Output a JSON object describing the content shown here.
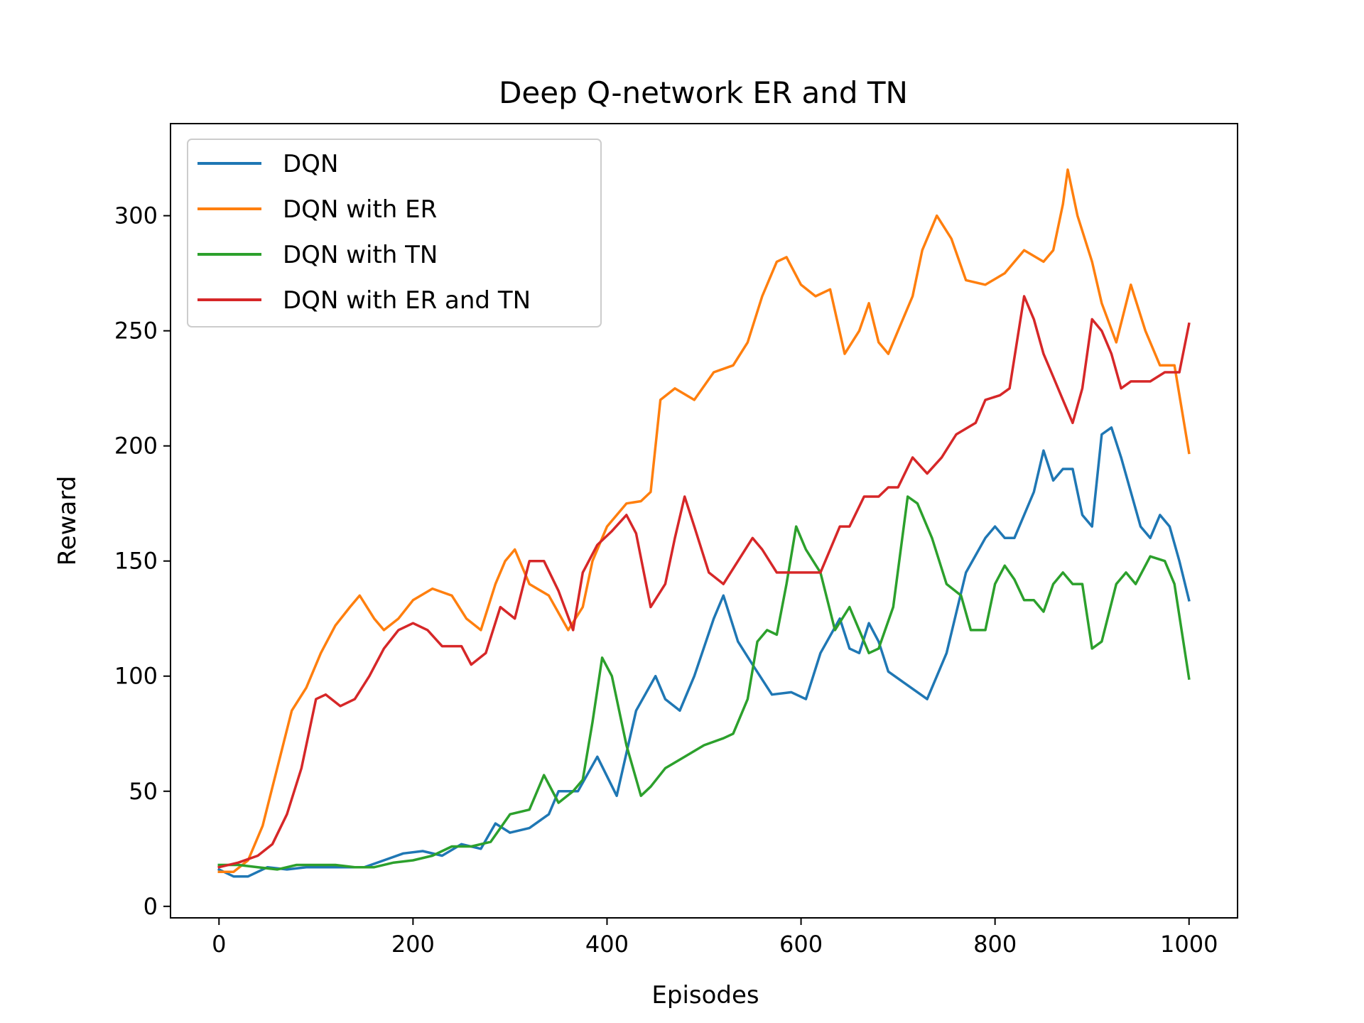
{
  "chart_data": {
    "type": "line",
    "title": "Deep Q-network ER and TN",
    "xlabel": "Episodes",
    "ylabel": "Reward",
    "xlim": [
      -50,
      1050
    ],
    "ylim": [
      -5,
      340
    ],
    "xticks": [
      0,
      200,
      400,
      600,
      800,
      1000
    ],
    "yticks": [
      0,
      50,
      100,
      150,
      200,
      250,
      300
    ],
    "grid": false,
    "legend_position": "top-left",
    "series": [
      {
        "name": "DQN",
        "color": "#1f77b4",
        "points": [
          [
            0,
            16
          ],
          [
            15,
            13
          ],
          [
            30,
            13
          ],
          [
            50,
            17
          ],
          [
            70,
            16
          ],
          [
            90,
            17
          ],
          [
            110,
            17
          ],
          [
            130,
            17
          ],
          [
            150,
            17
          ],
          [
            170,
            20
          ],
          [
            190,
            23
          ],
          [
            210,
            24
          ],
          [
            230,
            22
          ],
          [
            250,
            27
          ],
          [
            270,
            25
          ],
          [
            285,
            36
          ],
          [
            300,
            32
          ],
          [
            320,
            34
          ],
          [
            340,
            40
          ],
          [
            350,
            50
          ],
          [
            370,
            50
          ],
          [
            390,
            65
          ],
          [
            410,
            48
          ],
          [
            430,
            85
          ],
          [
            450,
            100
          ],
          [
            460,
            90
          ],
          [
            475,
            85
          ],
          [
            490,
            100
          ],
          [
            510,
            125
          ],
          [
            520,
            135
          ],
          [
            535,
            115
          ],
          [
            550,
            105
          ],
          [
            570,
            92
          ],
          [
            590,
            93
          ],
          [
            605,
            90
          ],
          [
            620,
            110
          ],
          [
            640,
            125
          ],
          [
            650,
            112
          ],
          [
            660,
            110
          ],
          [
            670,
            123
          ],
          [
            680,
            115
          ],
          [
            690,
            102
          ],
          [
            710,
            96
          ],
          [
            730,
            90
          ],
          [
            750,
            110
          ],
          [
            770,
            145
          ],
          [
            790,
            160
          ],
          [
            800,
            165
          ],
          [
            810,
            160
          ],
          [
            820,
            160
          ],
          [
            840,
            180
          ],
          [
            850,
            198
          ],
          [
            860,
            185
          ],
          [
            870,
            190
          ],
          [
            880,
            190
          ],
          [
            890,
            170
          ],
          [
            900,
            165
          ],
          [
            910,
            205
          ],
          [
            920,
            208
          ],
          [
            930,
            195
          ],
          [
            940,
            180
          ],
          [
            950,
            165
          ],
          [
            960,
            160
          ],
          [
            970,
            170
          ],
          [
            980,
            165
          ],
          [
            990,
            150
          ],
          [
            1000,
            133
          ]
        ]
      },
      {
        "name": "DQN with ER",
        "color": "#ff7f0e",
        "points": [
          [
            0,
            15
          ],
          [
            15,
            15
          ],
          [
            30,
            20
          ],
          [
            45,
            35
          ],
          [
            60,
            60
          ],
          [
            75,
            85
          ],
          [
            90,
            95
          ],
          [
            105,
            110
          ],
          [
            120,
            122
          ],
          [
            135,
            130
          ],
          [
            145,
            135
          ],
          [
            160,
            125
          ],
          [
            170,
            120
          ],
          [
            185,
            125
          ],
          [
            200,
            133
          ],
          [
            220,
            138
          ],
          [
            240,
            135
          ],
          [
            255,
            125
          ],
          [
            270,
            120
          ],
          [
            285,
            140
          ],
          [
            295,
            150
          ],
          [
            305,
            155
          ],
          [
            320,
            140
          ],
          [
            340,
            135
          ],
          [
            360,
            120
          ],
          [
            375,
            130
          ],
          [
            385,
            150
          ],
          [
            400,
            165
          ],
          [
            420,
            175
          ],
          [
            435,
            176
          ],
          [
            445,
            180
          ],
          [
            455,
            220
          ],
          [
            470,
            225
          ],
          [
            490,
            220
          ],
          [
            510,
            232
          ],
          [
            530,
            235
          ],
          [
            545,
            245
          ],
          [
            560,
            265
          ],
          [
            575,
            280
          ],
          [
            585,
            282
          ],
          [
            600,
            270
          ],
          [
            615,
            265
          ],
          [
            630,
            268
          ],
          [
            645,
            240
          ],
          [
            660,
            250
          ],
          [
            670,
            262
          ],
          [
            680,
            245
          ],
          [
            690,
            240
          ],
          [
            705,
            255
          ],
          [
            715,
            265
          ],
          [
            725,
            285
          ],
          [
            740,
            300
          ],
          [
            755,
            290
          ],
          [
            770,
            272
          ],
          [
            790,
            270
          ],
          [
            810,
            275
          ],
          [
            830,
            285
          ],
          [
            850,
            280
          ],
          [
            860,
            285
          ],
          [
            870,
            305
          ],
          [
            875,
            320
          ],
          [
            885,
            300
          ],
          [
            900,
            280
          ],
          [
            910,
            262
          ],
          [
            925,
            245
          ],
          [
            940,
            270
          ],
          [
            955,
            250
          ],
          [
            970,
            235
          ],
          [
            985,
            235
          ],
          [
            1000,
            197
          ]
        ]
      },
      {
        "name": "DQN with TN",
        "color": "#2ca02c",
        "points": [
          [
            0,
            18
          ],
          [
            20,
            18
          ],
          [
            40,
            17
          ],
          [
            60,
            16
          ],
          [
            80,
            18
          ],
          [
            100,
            18
          ],
          [
            120,
            18
          ],
          [
            140,
            17
          ],
          [
            160,
            17
          ],
          [
            180,
            19
          ],
          [
            200,
            20
          ],
          [
            220,
            22
          ],
          [
            240,
            26
          ],
          [
            260,
            26
          ],
          [
            280,
            28
          ],
          [
            300,
            40
          ],
          [
            320,
            42
          ],
          [
            335,
            57
          ],
          [
            350,
            45
          ],
          [
            365,
            50
          ],
          [
            375,
            55
          ],
          [
            385,
            80
          ],
          [
            395,
            108
          ],
          [
            405,
            100
          ],
          [
            420,
            70
          ],
          [
            435,
            48
          ],
          [
            445,
            52
          ],
          [
            460,
            60
          ],
          [
            480,
            65
          ],
          [
            500,
            70
          ],
          [
            520,
            73
          ],
          [
            530,
            75
          ],
          [
            545,
            90
          ],
          [
            555,
            115
          ],
          [
            565,
            120
          ],
          [
            575,
            118
          ],
          [
            585,
            140
          ],
          [
            595,
            165
          ],
          [
            605,
            155
          ],
          [
            620,
            145
          ],
          [
            635,
            120
          ],
          [
            650,
            130
          ],
          [
            660,
            120
          ],
          [
            670,
            110
          ],
          [
            680,
            112
          ],
          [
            695,
            130
          ],
          [
            710,
            178
          ],
          [
            720,
            175
          ],
          [
            735,
            160
          ],
          [
            750,
            140
          ],
          [
            765,
            135
          ],
          [
            775,
            120
          ],
          [
            790,
            120
          ],
          [
            800,
            140
          ],
          [
            810,
            148
          ],
          [
            820,
            142
          ],
          [
            830,
            133
          ],
          [
            840,
            133
          ],
          [
            850,
            128
          ],
          [
            860,
            140
          ],
          [
            870,
            145
          ],
          [
            880,
            140
          ],
          [
            890,
            140
          ],
          [
            900,
            112
          ],
          [
            910,
            115
          ],
          [
            925,
            140
          ],
          [
            935,
            145
          ],
          [
            945,
            140
          ],
          [
            960,
            152
          ],
          [
            975,
            150
          ],
          [
            985,
            140
          ],
          [
            1000,
            99
          ]
        ]
      },
      {
        "name": "DQN with ER and TN",
        "color": "#d62728",
        "points": [
          [
            0,
            17
          ],
          [
            20,
            19
          ],
          [
            40,
            22
          ],
          [
            55,
            27
          ],
          [
            70,
            40
          ],
          [
            85,
            60
          ],
          [
            100,
            90
          ],
          [
            110,
            92
          ],
          [
            125,
            87
          ],
          [
            140,
            90
          ],
          [
            155,
            100
          ],
          [
            170,
            112
          ],
          [
            185,
            120
          ],
          [
            200,
            123
          ],
          [
            215,
            120
          ],
          [
            230,
            113
          ],
          [
            250,
            113
          ],
          [
            260,
            105
          ],
          [
            275,
            110
          ],
          [
            290,
            130
          ],
          [
            305,
            125
          ],
          [
            320,
            150
          ],
          [
            335,
            150
          ],
          [
            350,
            137
          ],
          [
            365,
            120
          ],
          [
            375,
            145
          ],
          [
            390,
            157
          ],
          [
            405,
            163
          ],
          [
            420,
            170
          ],
          [
            430,
            162
          ],
          [
            445,
            130
          ],
          [
            460,
            140
          ],
          [
            470,
            160
          ],
          [
            480,
            178
          ],
          [
            490,
            165
          ],
          [
            505,
            145
          ],
          [
            520,
            140
          ],
          [
            535,
            150
          ],
          [
            550,
            160
          ],
          [
            560,
            155
          ],
          [
            575,
            145
          ],
          [
            590,
            145
          ],
          [
            605,
            145
          ],
          [
            620,
            145
          ],
          [
            640,
            165
          ],
          [
            650,
            165
          ],
          [
            665,
            178
          ],
          [
            680,
            178
          ],
          [
            690,
            182
          ],
          [
            700,
            182
          ],
          [
            715,
            195
          ],
          [
            730,
            188
          ],
          [
            745,
            195
          ],
          [
            760,
            205
          ],
          [
            780,
            210
          ],
          [
            790,
            220
          ],
          [
            805,
            222
          ],
          [
            815,
            225
          ],
          [
            830,
            265
          ],
          [
            840,
            255
          ],
          [
            850,
            240
          ],
          [
            860,
            230
          ],
          [
            870,
            220
          ],
          [
            880,
            210
          ],
          [
            890,
            225
          ],
          [
            900,
            255
          ],
          [
            910,
            250
          ],
          [
            920,
            240
          ],
          [
            930,
            225
          ],
          [
            940,
            228
          ],
          [
            960,
            228
          ],
          [
            975,
            232
          ],
          [
            990,
            232
          ],
          [
            1000,
            253
          ]
        ]
      }
    ]
  }
}
